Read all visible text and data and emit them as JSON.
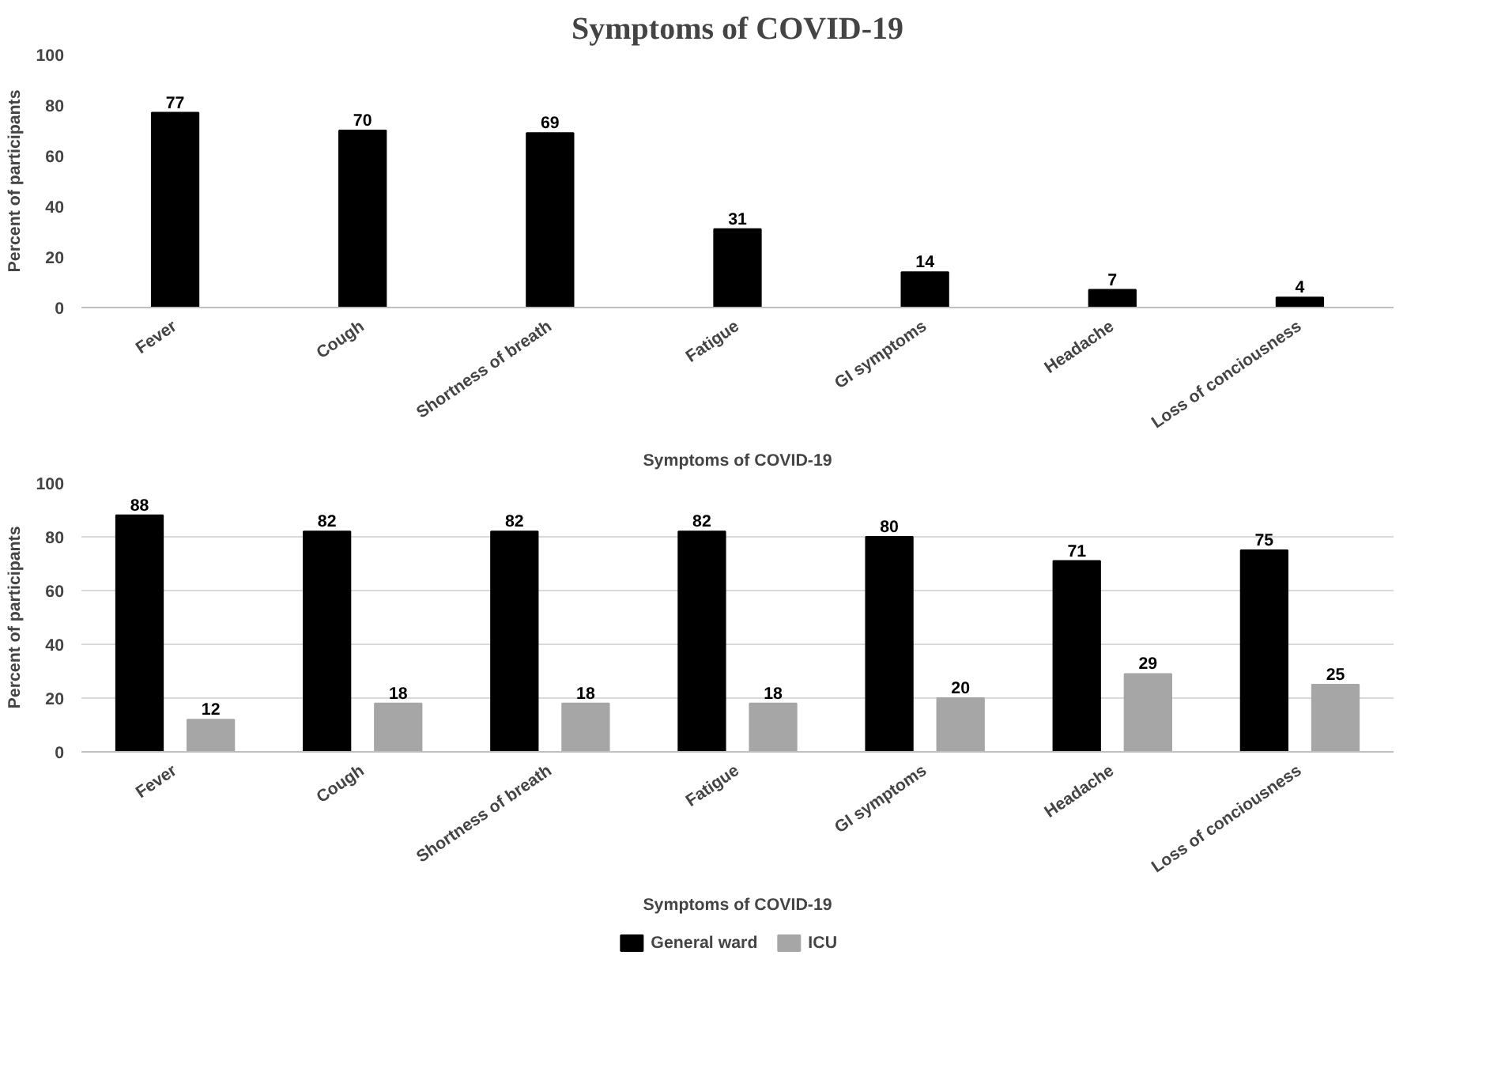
{
  "chart_data": [
    {
      "type": "bar",
      "title": "Symptoms of COVID-19",
      "xlabel": "Symptoms of COVID-19",
      "ylabel": "Percent of participants",
      "categories": [
        "Fever",
        "Cough",
        "Shortness of breath",
        "Fatigue",
        "GI symptoms",
        "Headache",
        "Loss of conciousness"
      ],
      "series": [
        {
          "color": "#000000",
          "values": [
            77,
            70,
            69,
            31,
            14,
            7,
            4
          ]
        }
      ],
      "ylim": [
        0,
        100
      ],
      "yticks": [
        0,
        20,
        40,
        60,
        80,
        100
      ],
      "grid": false,
      "data_labels": true
    },
    {
      "type": "bar",
      "xlabel": "Symptoms of COVID-19",
      "ylabel": "Percent of participants",
      "categories": [
        "Fever",
        "Cough",
        "Shortness of breath",
        "Fatigue",
        "GI symptoms",
        "Headache",
        "Loss of conciousness"
      ],
      "series": [
        {
          "name": "General ward",
          "color": "#000000",
          "values": [
            88,
            82,
            82,
            82,
            80,
            71,
            75
          ]
        },
        {
          "name": "ICU",
          "color": "#a6a6a6",
          "values": [
            12,
            18,
            18,
            18,
            20,
            29,
            25
          ]
        }
      ],
      "ylim": [
        0,
        100
      ],
      "yticks": [
        0,
        20,
        40,
        60,
        80,
        100
      ],
      "grid": "y",
      "legend": "bottom",
      "data_labels": true
    }
  ]
}
